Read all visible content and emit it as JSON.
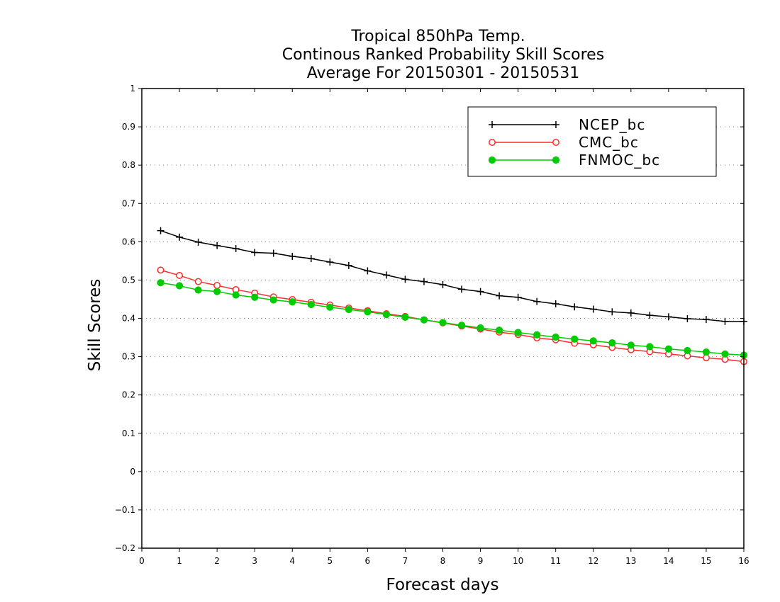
{
  "chart_data": {
    "type": "line",
    "title_lines": [
      "Tropical 850hPa Temp.",
      "Continous Ranked Probability Skill Scores",
      "Average For 20150301 - 20150531"
    ],
    "xlabel": "Forecast days",
    "ylabel": "Skill Scores",
    "xlim": [
      0,
      16
    ],
    "ylim": [
      -0.2,
      1
    ],
    "x_ticks": [
      0,
      1,
      2,
      3,
      4,
      5,
      6,
      7,
      8,
      9,
      10,
      11,
      12,
      13,
      14,
      15,
      16
    ],
    "y_ticks": [
      -0.2,
      -0.1,
      0,
      0.1,
      0.2,
      0.3,
      0.4,
      0.5,
      0.6,
      0.7,
      0.8,
      0.9,
      1
    ],
    "y_tick_labels": [
      "−0.2",
      "−0.1",
      "0",
      "0.1",
      "0.2",
      "0.3",
      "0.4",
      "0.5",
      "0.6",
      "0.7",
      "0.8",
      "0.9",
      "1"
    ],
    "grid": "horizontal dotted",
    "legend_position": "top-right",
    "x": [
      0.5,
      1,
      1.5,
      2,
      2.5,
      3,
      3.5,
      4,
      4.5,
      5,
      5.5,
      6,
      6.5,
      7,
      7.5,
      8,
      8.5,
      9,
      9.5,
      10,
      10.5,
      11,
      11.5,
      12,
      12.5,
      13,
      13.5,
      14,
      14.5,
      15,
      15.5,
      16
    ],
    "series": [
      {
        "name": "NCEP_bc",
        "color": "#000000",
        "marker": "plus",
        "values": [
          0.629,
          0.612,
          0.599,
          0.59,
          0.582,
          0.572,
          0.57,
          0.562,
          0.556,
          0.547,
          0.538,
          0.524,
          0.513,
          0.502,
          0.496,
          0.488,
          0.476,
          0.47,
          0.459,
          0.455,
          0.444,
          0.438,
          0.43,
          0.424,
          0.417,
          0.414,
          0.408,
          0.404,
          0.399,
          0.397,
          0.392,
          0.392
        ]
      },
      {
        "name": "CMC_bc",
        "color": "#ff2a2a",
        "marker": "open-circle",
        "values": [
          0.526,
          0.512,
          0.496,
          0.486,
          0.475,
          0.466,
          0.456,
          0.449,
          0.442,
          0.435,
          0.427,
          0.42,
          0.412,
          0.405,
          0.396,
          0.388,
          0.38,
          0.372,
          0.364,
          0.358,
          0.349,
          0.344,
          0.335,
          0.331,
          0.324,
          0.318,
          0.313,
          0.307,
          0.302,
          0.297,
          0.293,
          0.287
        ]
      },
      {
        "name": "FNMOC_bc",
        "color": "#00cc00",
        "marker": "filled-circle",
        "values": [
          0.493,
          0.485,
          0.474,
          0.47,
          0.461,
          0.455,
          0.448,
          0.443,
          0.436,
          0.429,
          0.423,
          0.417,
          0.41,
          0.403,
          0.396,
          0.389,
          0.382,
          0.375,
          0.369,
          0.363,
          0.357,
          0.351,
          0.346,
          0.341,
          0.336,
          0.33,
          0.326,
          0.32,
          0.316,
          0.312,
          0.307,
          0.304
        ]
      }
    ]
  }
}
